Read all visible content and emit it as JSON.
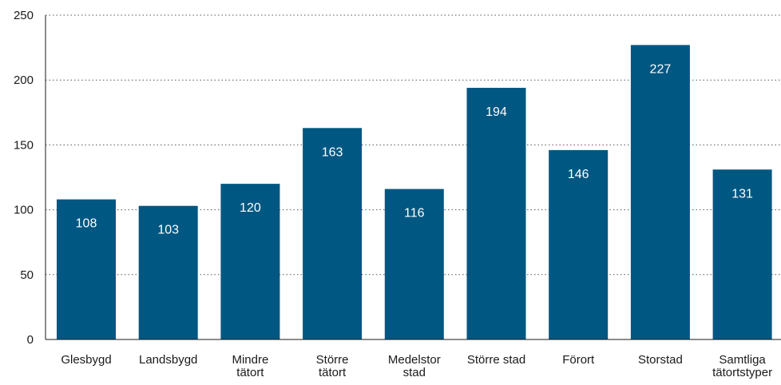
{
  "chart_data": {
    "type": "bar",
    "categories": [
      [
        "Glesbygd"
      ],
      [
        "Landsbygd"
      ],
      [
        "Mindre",
        "tätort"
      ],
      [
        "Större",
        "tätort"
      ],
      [
        "Medelstor",
        "stad"
      ],
      [
        "Större stad"
      ],
      [
        "Förort"
      ],
      [
        "Storstad"
      ],
      [
        "Samtliga",
        "tätortstyper"
      ]
    ],
    "values": [
      108,
      103,
      120,
      163,
      116,
      194,
      146,
      227,
      131
    ],
    "data_labels": [
      "108",
      "103",
      "120",
      "163",
      "116",
      "194",
      "146",
      "227",
      "131"
    ],
    "yticks": [
      0,
      50,
      100,
      150,
      200,
      250
    ],
    "ytick_labels": [
      "0",
      "50",
      "100",
      "150",
      "200",
      "250"
    ],
    "ylim": [
      0,
      250
    ],
    "title": "",
    "xlabel": "",
    "ylabel": "",
    "grid": "horizontal dotted",
    "legend": "none",
    "colors": {
      "bar": "#005782",
      "bar_label": "#ffffff",
      "text": "#1a1a1a",
      "grid": "#555555"
    }
  }
}
